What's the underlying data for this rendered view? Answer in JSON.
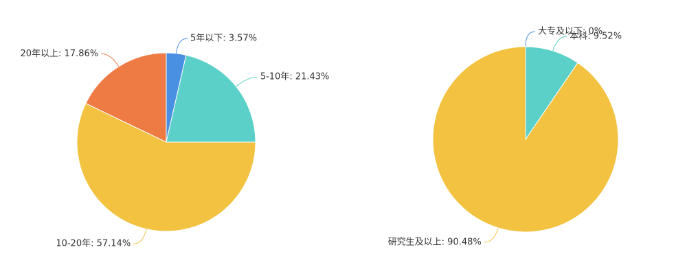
{
  "chart_data": [
    {
      "type": "pie",
      "values": [
        3.57,
        21.43,
        57.14,
        17.86
      ],
      "value_labels": [
        "5年以下: 3.57%",
        "5-10年: 21.43%",
        "10-20年: 57.14%",
        "20年以上: 17.86%"
      ],
      "colors": [
        "#4a90e2",
        "#5bd0c8",
        "#f2c240",
        "#ee7b44"
      ]
    },
    {
      "type": "pie",
      "values": [
        0,
        9.52,
        90.48
      ],
      "value_labels": [
        "大专及以下: 0%",
        "本科: 9.52%",
        "研究生及以上: 90.48%"
      ],
      "colors": [
        "#4a90e2",
        "#5bd0c8",
        "#f2c240"
      ]
    }
  ]
}
